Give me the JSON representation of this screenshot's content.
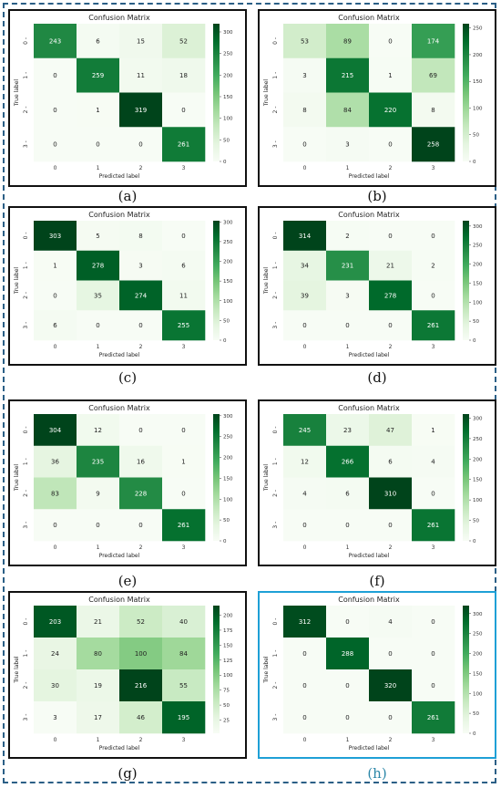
{
  "chart_data": [
    {
      "id": "a",
      "caption": "(a)",
      "highlight": false,
      "type": "heatmap",
      "title": "Confusion Matrix",
      "xlabel": "Predicted label",
      "ylabel": "True label",
      "categories": [
        "0",
        "1",
        "2",
        "3"
      ],
      "matrix": [
        [
          243,
          6,
          15,
          52
        ],
        [
          0,
          259,
          11,
          18
        ],
        [
          0,
          1,
          319,
          0
        ],
        [
          0,
          0,
          0,
          261
        ]
      ],
      "colorbar": {
        "ticks": [
          0,
          50,
          100,
          150,
          200,
          250,
          300
        ],
        "max": 319
      }
    },
    {
      "id": "b",
      "caption": "(b)",
      "highlight": false,
      "type": "heatmap",
      "title": "Confusion Matrix",
      "xlabel": "Predicted label",
      "ylabel": "True label",
      "categories": [
        "0",
        "1",
        "2",
        "3"
      ],
      "matrix": [
        [
          53,
          89,
          0,
          174
        ],
        [
          3,
          215,
          1,
          69
        ],
        [
          8,
          84,
          220,
          8
        ],
        [
          0,
          3,
          0,
          258
        ]
      ],
      "colorbar": {
        "ticks": [
          0,
          50,
          100,
          150,
          200,
          250
        ],
        "max": 258
      }
    },
    {
      "id": "c",
      "caption": "(c)",
      "highlight": false,
      "type": "heatmap",
      "title": "Confusion Matrix",
      "xlabel": "Predicted label",
      "ylabel": "True label",
      "categories": [
        "0",
        "1",
        "2",
        "3"
      ],
      "matrix": [
        [
          303,
          5,
          8,
          0
        ],
        [
          1,
          278,
          3,
          6
        ],
        [
          0,
          35,
          274,
          11
        ],
        [
          6,
          0,
          0,
          255
        ]
      ],
      "colorbar": {
        "ticks": [
          0,
          50,
          100,
          150,
          200,
          250,
          300
        ],
        "max": 303
      }
    },
    {
      "id": "d",
      "caption": "(d)",
      "highlight": false,
      "type": "heatmap",
      "title": "Confusion Matrix",
      "xlabel": "Predicted label",
      "ylabel": "True label",
      "categories": [
        "0",
        "1",
        "2",
        "3"
      ],
      "matrix": [
        [
          314,
          2,
          0,
          0
        ],
        [
          34,
          231,
          21,
          2
        ],
        [
          39,
          3,
          278,
          0
        ],
        [
          0,
          0,
          0,
          261
        ]
      ],
      "colorbar": {
        "ticks": [
          0,
          50,
          100,
          150,
          200,
          250,
          300
        ],
        "max": 314
      }
    },
    {
      "id": "e",
      "caption": "(e)",
      "highlight": false,
      "type": "heatmap",
      "title": "Confusion Matrix",
      "xlabel": "Predicted label",
      "ylabel": "True label",
      "categories": [
        "0",
        "1",
        "2",
        "3"
      ],
      "matrix": [
        [
          304,
          12,
          0,
          0
        ],
        [
          36,
          235,
          16,
          1
        ],
        [
          83,
          9,
          228,
          0
        ],
        [
          0,
          0,
          0,
          261
        ]
      ],
      "colorbar": {
        "ticks": [
          0,
          50,
          100,
          150,
          200,
          250,
          300
        ],
        "max": 304
      }
    },
    {
      "id": "f",
      "caption": "(f)",
      "highlight": false,
      "type": "heatmap",
      "title": "Confusion Matrix",
      "xlabel": "Predicted label",
      "ylabel": "True label",
      "categories": [
        "0",
        "1",
        "2",
        "3"
      ],
      "matrix": [
        [
          245,
          23,
          47,
          1
        ],
        [
          12,
          266,
          6,
          4
        ],
        [
          4,
          6,
          310,
          0
        ],
        [
          0,
          0,
          0,
          261
        ]
      ],
      "colorbar": {
        "ticks": [
          0,
          50,
          100,
          150,
          200,
          250,
          300
        ],
        "max": 310
      }
    },
    {
      "id": "g",
      "caption": "(g)",
      "highlight": false,
      "type": "heatmap",
      "title": "Confusion Matrix",
      "xlabel": "Predicted label",
      "ylabel": "True label",
      "categories": [
        "0",
        "1",
        "2",
        "3"
      ],
      "matrix": [
        [
          203,
          21,
          52,
          40
        ],
        [
          24,
          80,
          100,
          84
        ],
        [
          30,
          19,
          216,
          55
        ],
        [
          3,
          17,
          46,
          195
        ]
      ],
      "colorbar": {
        "ticks": [
          25,
          50,
          75,
          100,
          125,
          150,
          175,
          200
        ],
        "min": 3,
        "max": 216
      }
    },
    {
      "id": "h",
      "caption": "(h)",
      "highlight": true,
      "type": "heatmap",
      "title": "Confusion Matrix",
      "xlabel": "Predicted label",
      "ylabel": "True label",
      "categories": [
        "0",
        "1",
        "2",
        "3"
      ],
      "matrix": [
        [
          312,
          0,
          4,
          0
        ],
        [
          0,
          288,
          0,
          0
        ],
        [
          0,
          0,
          320,
          0
        ],
        [
          0,
          0,
          0,
          261
        ]
      ],
      "colorbar": {
        "ticks": [
          0,
          50,
          100,
          150,
          200,
          250,
          300
        ],
        "max": 320
      }
    }
  ]
}
